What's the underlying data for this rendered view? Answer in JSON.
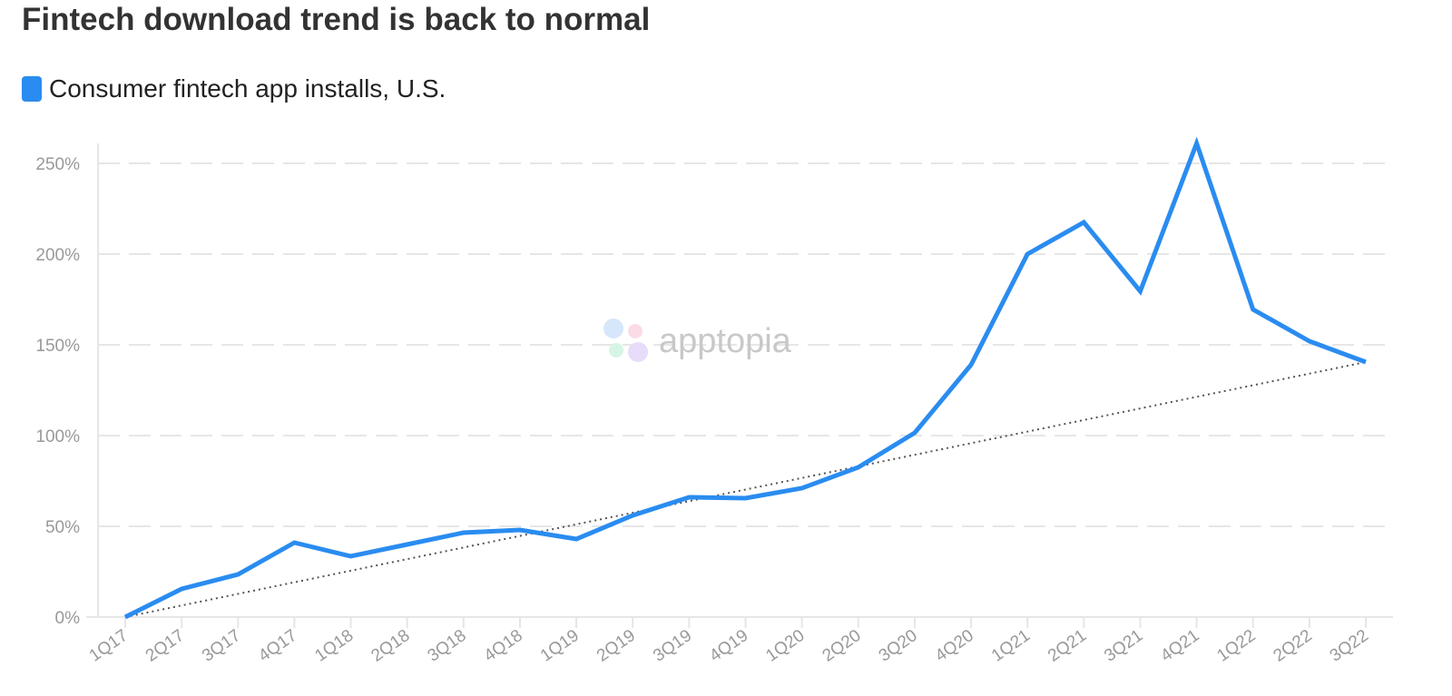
{
  "chart_data": {
    "type": "line",
    "title": "Fintech download trend is back to normal",
    "categories": [
      "1Q17",
      "2Q17",
      "3Q17",
      "4Q17",
      "1Q18",
      "2Q18",
      "3Q18",
      "4Q18",
      "1Q19",
      "2Q19",
      "3Q19",
      "4Q19",
      "1Q20",
      "2Q20",
      "3Q20",
      "4Q20",
      "1Q21",
      "2Q21",
      "3Q21",
      "4Q21",
      "1Q22",
      "2Q22",
      "3Q22"
    ],
    "series": [
      {
        "name": "Consumer fintech app installs, U.S.",
        "color": "#2a8cf0",
        "values": [
          0,
          15.5,
          23.5,
          41,
          33.5,
          40,
          46.5,
          48,
          43,
          56,
          66,
          65.5,
          71,
          82.5,
          101.5,
          139,
          200,
          217.5,
          179.5,
          261,
          169.5,
          152,
          140.5
        ]
      }
    ],
    "trendline": {
      "style": "dotted",
      "color": "#555555",
      "from": 0,
      "to": 140.5
    },
    "yticks": [
      "0%",
      "50%",
      "100%",
      "150%",
      "200%",
      "250%"
    ],
    "ytick_values": [
      0,
      50,
      100,
      150,
      200,
      250
    ],
    "ylim": [
      0,
      261
    ],
    "xlabel": "",
    "ylabel": "",
    "grid": true,
    "legend": "top-left",
    "watermark": "apptopia"
  }
}
